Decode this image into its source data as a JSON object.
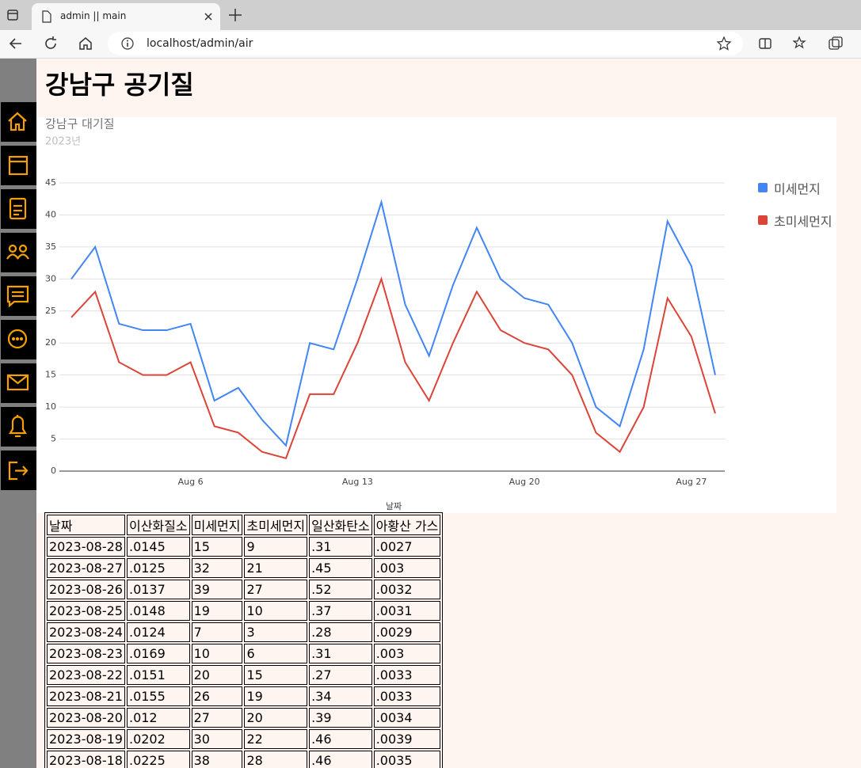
{
  "browser": {
    "tab_title": "admin || main",
    "url": "localhost/admin/air"
  },
  "page": {
    "heading": "강남구 공기질"
  },
  "chart_data": {
    "type": "line",
    "title": "강남구 대기질",
    "subtitle": "2023년",
    "x_label": "날짜",
    "x": [
      1,
      2,
      3,
      4,
      5,
      6,
      7,
      8,
      9,
      10,
      11,
      12,
      13,
      14,
      15,
      16,
      17,
      18,
      19,
      20,
      21,
      22,
      23,
      24,
      25,
      26,
      27,
      28
    ],
    "series": [
      {
        "name": "미세먼지",
        "color": "#4285f4",
        "values": [
          30,
          35,
          23,
          22,
          22,
          23,
          11,
          13,
          8,
          4,
          20,
          19,
          30,
          42,
          26,
          18,
          29,
          38,
          30,
          27,
          26,
          20,
          10,
          7,
          19,
          39,
          32,
          15
        ]
      },
      {
        "name": "초미세먼지",
        "color": "#db4437",
        "values": [
          24,
          28,
          17,
          15,
          15,
          17,
          7,
          6,
          3,
          2,
          12,
          12,
          20,
          30,
          17,
          11,
          20,
          28,
          22,
          20,
          19,
          15,
          6,
          3,
          10,
          27,
          21,
          9
        ]
      }
    ],
    "xlim": [
      0.5,
      28.4
    ],
    "xticks": [
      {
        "value": 6,
        "label": "Aug 6"
      },
      {
        "value": 13,
        "label": "Aug 13"
      },
      {
        "value": 20,
        "label": "Aug 20"
      },
      {
        "value": 27,
        "label": "Aug 27"
      }
    ],
    "ylim": [
      0,
      45
    ],
    "yticks": [
      0,
      5,
      10,
      15,
      20,
      25,
      30,
      35,
      40,
      45
    ],
    "grid": true,
    "legend": "right"
  },
  "table": {
    "header": [
      "날짜",
      "이산화질소",
      "미세먼지",
      "초미세먼지",
      "일산화탄소",
      "아황산 가스"
    ],
    "rows": [
      [
        "2023-08-28",
        ".0145",
        "15",
        "9",
        ".31",
        ".0027"
      ],
      [
        "2023-08-27",
        ".0125",
        "32",
        "21",
        ".45",
        ".003"
      ],
      [
        "2023-08-26",
        ".0137",
        "39",
        "27",
        ".52",
        ".0032"
      ],
      [
        "2023-08-25",
        ".0148",
        "19",
        "10",
        ".37",
        ".0031"
      ],
      [
        "2023-08-24",
        ".0124",
        "7",
        "3",
        ".28",
        ".0029"
      ],
      [
        "2023-08-23",
        ".0169",
        "10",
        "6",
        ".31",
        ".003"
      ],
      [
        "2023-08-22",
        ".0151",
        "20",
        "15",
        ".27",
        ".0033"
      ],
      [
        "2023-08-21",
        ".0155",
        "26",
        "19",
        ".34",
        ".0033"
      ],
      [
        "2023-08-20",
        ".012",
        "27",
        "20",
        ".39",
        ".0034"
      ],
      [
        "2023-08-19",
        ".0202",
        "30",
        "22",
        ".46",
        ".0039"
      ],
      [
        "2023-08-18",
        ".0225",
        "38",
        "28",
        ".46",
        ".0035"
      ]
    ]
  }
}
